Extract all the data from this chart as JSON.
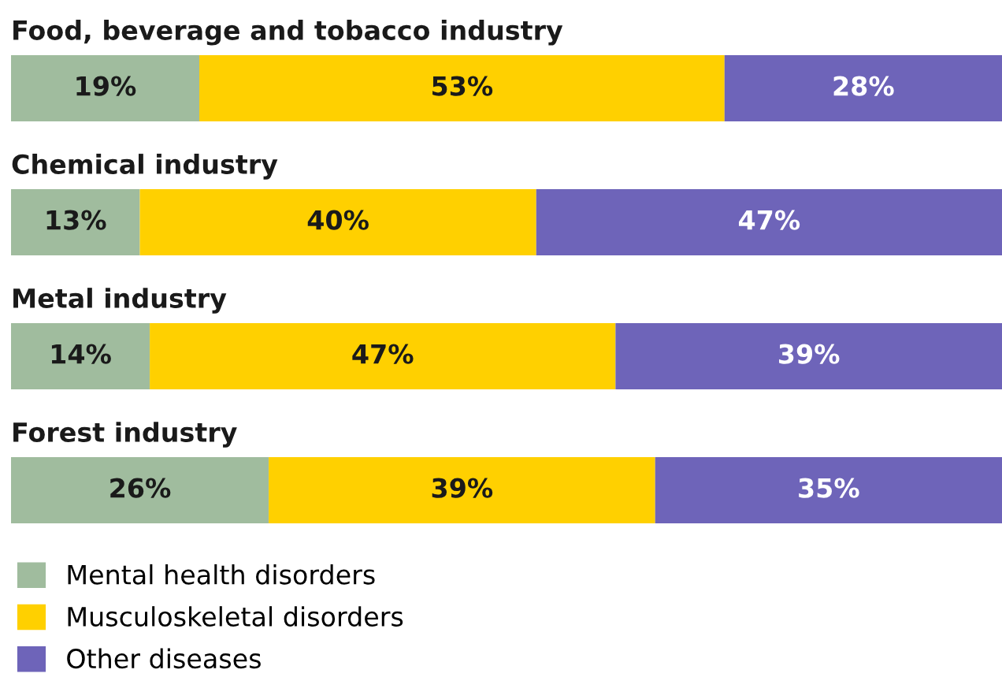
{
  "chart_data": {
    "type": "bar",
    "orientation": "horizontal",
    "stacked": true,
    "legend": "bottom left",
    "categories": [
      "Food, beverage and tobacco industry",
      "Chemical industry",
      "Metal industry",
      "Forest industry"
    ],
    "series": [
      {
        "name": "Mental health disorders",
        "color": "#a0bc9e",
        "values": [
          19,
          13,
          14,
          26
        ],
        "value_labels": [
          "19%",
          "13%",
          "14%",
          "26%"
        ]
      },
      {
        "name": "Musculoskeletal disorders",
        "color": "#ffd000",
        "values": [
          53,
          40,
          47,
          39
        ],
        "value_labels": [
          "53%",
          "40%",
          "47%",
          "39%"
        ]
      },
      {
        "name": "Other diseases",
        "color": "#6e64b9",
        "values": [
          28,
          47,
          39,
          35
        ],
        "value_labels": [
          "28%",
          "47%",
          "39%",
          "35%"
        ]
      }
    ]
  }
}
